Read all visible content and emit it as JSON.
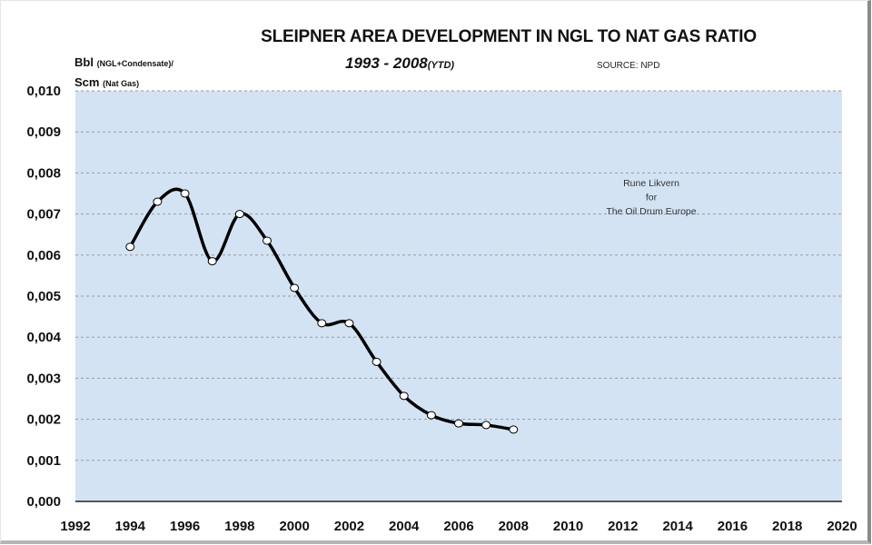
{
  "chart_data": {
    "type": "line",
    "title": "SLEIPNER AREA DEVELOPMENT IN NGL TO NAT GAS RATIO",
    "subtitle": "1993 - 2008",
    "subtitle_suffix": "(YTD)",
    "source": "SOURCE: NPD",
    "ylabel_line1": "Bbl",
    "ylabel_line1_small": "(NGL+Condensate)/",
    "ylabel_line2": "Scm",
    "ylabel_line2_small": "(Nat Gas)",
    "xlabel": "",
    "xlim": [
      1992,
      2020
    ],
    "ylim": [
      0,
      0.01
    ],
    "x_ticks": [
      "1992",
      "1994",
      "1996",
      "1998",
      "2000",
      "2002",
      "2004",
      "2006",
      "2008",
      "2010",
      "2012",
      "2014",
      "2016",
      "2018",
      "2020"
    ],
    "y_ticks": [
      "0,000",
      "0,001",
      "0,002",
      "0,003",
      "0,004",
      "0,005",
      "0,006",
      "0,007",
      "0,008",
      "0,009",
      "0,010"
    ],
    "grid": "horizontal dashed",
    "plot_background": "#d3e3f4",
    "line_color": "#000000",
    "marker_fill": "#ffffff",
    "annotation": [
      "Rune Likvern",
      "for",
      "The Oil Drum Europe"
    ],
    "series": [
      {
        "name": "NGL to Nat Gas ratio",
        "x": [
          1994,
          1995,
          1996,
          1997,
          1998,
          1999,
          2000,
          2001,
          2002,
          2003,
          2004,
          2005,
          2006,
          2007,
          2008
        ],
        "y": [
          0.0062,
          0.0073,
          0.0075,
          0.00585,
          0.007,
          0.00635,
          0.0052,
          0.00434,
          0.00434,
          0.0034,
          0.00257,
          0.0021,
          0.0019,
          0.00186,
          0.00175
        ]
      }
    ]
  }
}
